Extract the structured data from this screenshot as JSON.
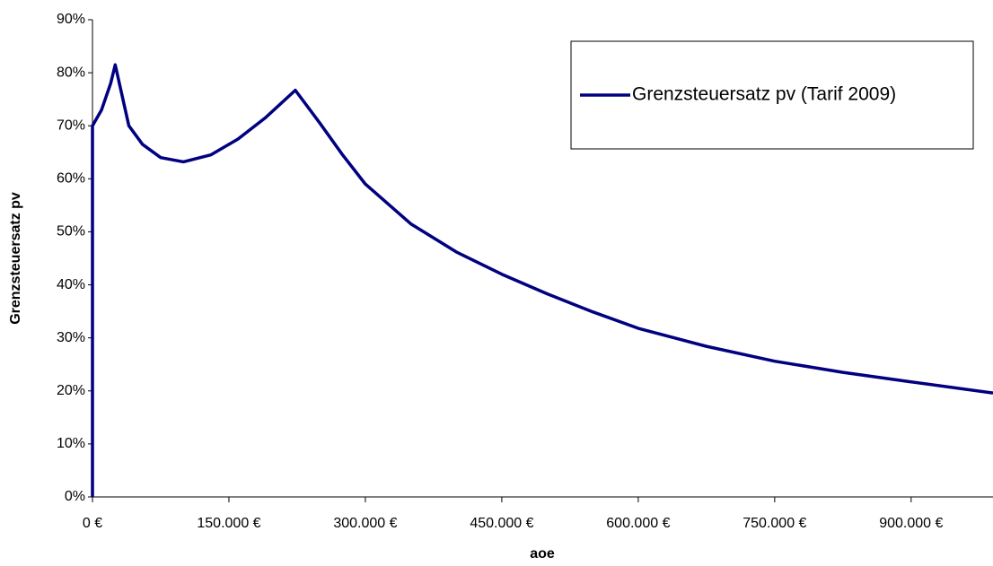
{
  "chart_data": {
    "type": "line",
    "x_label": "aoe",
    "y_label": "Grenzsteuersatz pv",
    "x": [
      0,
      0,
      10000,
      20000,
      25000,
      40000,
      55000,
      75000,
      100000,
      130000,
      160000,
      190000,
      223000,
      250000,
      275000,
      300000,
      350000,
      400000,
      450000,
      500000,
      550000,
      600000,
      675000,
      750000,
      825000,
      900000,
      990000
    ],
    "series": [
      {
        "name": "Grenzsteuersatz pv (Tarif 2009)",
        "color": "#000080",
        "values": [
          0,
          70,
          73,
          78,
          81.5,
          70,
          66.5,
          64,
          63.2,
          64.5,
          67.5,
          71.5,
          76.7,
          70.5,
          64.5,
          59,
          51.5,
          46.2,
          42,
          38.3,
          34.9,
          31.8,
          28.4,
          25.6,
          23.5,
          21.7,
          19.6
        ]
      }
    ],
    "xlim": [
      0,
      990000
    ],
    "xticks": [
      {
        "value": 0,
        "label": "0 €"
      },
      {
        "value": 150000,
        "label": "150.000 €"
      },
      {
        "value": 300000,
        "label": "300.000 €"
      },
      {
        "value": 450000,
        "label": "450.000 €"
      },
      {
        "value": 600000,
        "label": "600.000 €"
      },
      {
        "value": 750000,
        "label": "750.000 €"
      },
      {
        "value": 900000,
        "label": "900.000 €"
      }
    ],
    "ylim": [
      0,
      90
    ],
    "yticks": [
      {
        "value": 0,
        "label": "0%"
      },
      {
        "value": 10,
        "label": "10%"
      },
      {
        "value": 20,
        "label": "20%"
      },
      {
        "value": 30,
        "label": "30%"
      },
      {
        "value": 40,
        "label": "40%"
      },
      {
        "value": 50,
        "label": "50%"
      },
      {
        "value": 60,
        "label": "60%"
      },
      {
        "value": 70,
        "label": "70%"
      },
      {
        "value": 80,
        "label": "80%"
      },
      {
        "value": 90,
        "label": "90%"
      }
    ],
    "grid": false,
    "legend": "upper right"
  }
}
